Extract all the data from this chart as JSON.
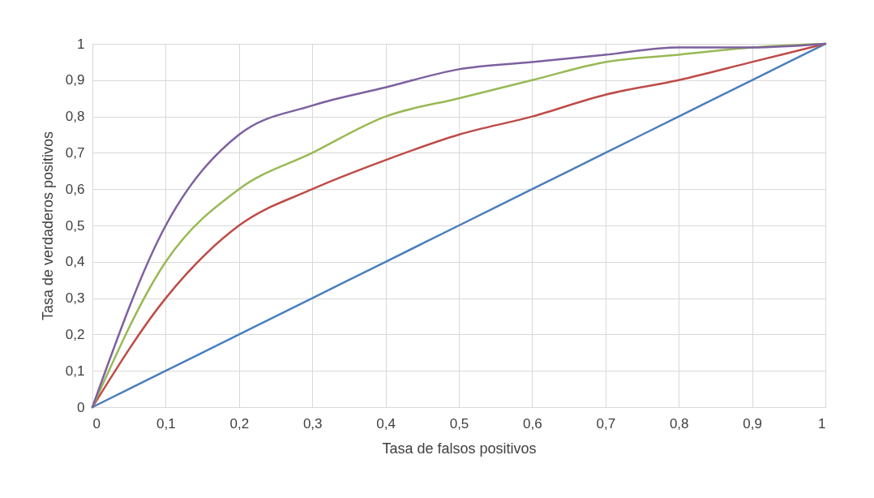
{
  "chart_data": {
    "type": "line",
    "xlabel": "Tasa de falsos positivos",
    "ylabel": "Tasa de verdaderos positivos",
    "x": [
      0,
      0.1,
      0.2,
      0.3,
      0.4,
      0.5,
      0.6,
      0.7,
      0.8,
      0.9,
      1
    ],
    "series": [
      {
        "color": "#4a7ebb",
        "values": [
          0,
          0.1,
          0.2,
          0.3,
          0.4,
          0.5,
          0.6,
          0.7,
          0.8,
          0.9,
          1
        ]
      },
      {
        "color": "#be4b48",
        "values": [
          0,
          0.3,
          0.5,
          0.6,
          0.68,
          0.75,
          0.8,
          0.86,
          0.9,
          0.95,
          1
        ]
      },
      {
        "color": "#98b954",
        "values": [
          0,
          0.4,
          0.6,
          0.7,
          0.8,
          0.85,
          0.9,
          0.95,
          0.97,
          0.99,
          1
        ]
      },
      {
        "color": "#7d60a0",
        "values": [
          0,
          0.5,
          0.75,
          0.83,
          0.88,
          0.93,
          0.95,
          0.97,
          0.99,
          0.99,
          1
        ]
      }
    ],
    "xlim": [
      0,
      1
    ],
    "ylim": [
      0,
      1
    ],
    "xticks": [
      0,
      {
        "value": 0.1,
        "label": "0,1"
      },
      {
        "value": 0.2,
        "label": "0,2"
      },
      {
        "value": 0.3,
        "label": "0,3"
      },
      {
        "value": 0.4,
        "label": "0,4"
      },
      {
        "value": 0.5,
        "label": "0,5"
      },
      {
        "value": 0.6,
        "label": "0,6"
      },
      {
        "value": 0.7,
        "label": "0,7"
      },
      {
        "value": 0.8,
        "label": "0,8"
      },
      {
        "value": 0.9,
        "label": "0,9"
      },
      1
    ],
    "yticks": [
      0,
      {
        "value": 0.1,
        "label": "0,1"
      },
      {
        "value": 0.2,
        "label": "0,2"
      },
      {
        "value": 0.3,
        "label": "0,3"
      },
      {
        "value": 0.4,
        "label": "0,4"
      },
      {
        "value": 0.5,
        "label": "0,5"
      },
      {
        "value": 0.6,
        "label": "0,6"
      },
      {
        "value": 0.7,
        "label": "0,7"
      },
      {
        "value": 0.8,
        "label": "0,8"
      },
      {
        "value": 0.9,
        "label": "0,9"
      },
      1
    ],
    "grid": true,
    "legend": false,
    "line_style": "solid",
    "marker": "none"
  }
}
